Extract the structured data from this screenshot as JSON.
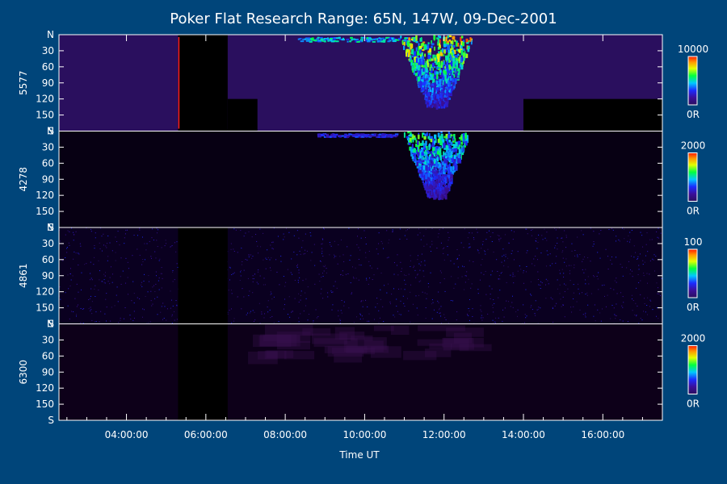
{
  "chart_data": {
    "type": "heatmap",
    "title": "Poker Flat Research Range: 65N, 147W, 09-Dec-2001",
    "xlabel": "Time UT",
    "x_ticks": [
      "04:00:00",
      "06:00:00",
      "08:00:00",
      "10:00:00",
      "12:00:00",
      "14:00:00",
      "16:00:00"
    ],
    "x_range_hours": [
      2.3,
      17.5
    ],
    "y_range_deg": [
      0,
      180
    ],
    "y_ticks": [
      "N",
      "30",
      "60",
      "90",
      "120",
      "150",
      "S"
    ],
    "panels": [
      {
        "name": "5577",
        "colorbar_max": "10000",
        "colorbar_min": "0R",
        "background": "#2a0f5e",
        "data_gaps_hours": [
          [
            5.3,
            6.55
          ]
        ],
        "partial_gaps": [
          [
            6.55,
            7.3,
            120,
            180
          ],
          [
            14.0,
            17.5,
            120,
            180
          ]
        ],
        "features": [
          {
            "kind": "arc",
            "t0": 8.3,
            "t1": 11.3,
            "deg": [
              4,
              12
            ],
            "peak": 0.6
          },
          {
            "kind": "substorm",
            "t0": 11.0,
            "t1": 12.9,
            "tc": 11.8,
            "deg": [
              0,
              130
            ],
            "peak": 1.0
          }
        ]
      },
      {
        "name": "4278",
        "colorbar_max": "2000",
        "colorbar_min": "0R",
        "background": "#070013",
        "data_gaps_hours": [],
        "partial_gaps": [],
        "features": [
          {
            "kind": "arc",
            "t0": 8.8,
            "t1": 10.8,
            "deg": [
              4,
              10
            ],
            "peak": 0.35
          },
          {
            "kind": "substorm",
            "t0": 11.1,
            "t1": 12.8,
            "tc": 11.8,
            "deg": [
              0,
              120
            ],
            "peak": 0.75
          }
        ]
      },
      {
        "name": "4861",
        "colorbar_max": "100",
        "colorbar_min": "0R",
        "background": "#0a0020",
        "data_gaps_hours": [
          [
            5.3,
            6.55
          ]
        ],
        "partial_gaps": [],
        "features": [
          {
            "kind": "noise",
            "t0": 2.3,
            "t1": 17.5,
            "deg": [
              0,
              180
            ],
            "peak": 0.3
          }
        ]
      },
      {
        "name": "6300",
        "colorbar_max": "2000",
        "colorbar_min": "0R",
        "background": "#0d0019",
        "data_gaps_hours": [
          [
            5.3,
            6.55
          ]
        ],
        "partial_gaps": [],
        "features": [
          {
            "kind": "diffuse",
            "t0": 6.6,
            "t1": 12.5,
            "deg": [
              0,
              60
            ],
            "peak": 0.12
          }
        ]
      }
    ]
  }
}
